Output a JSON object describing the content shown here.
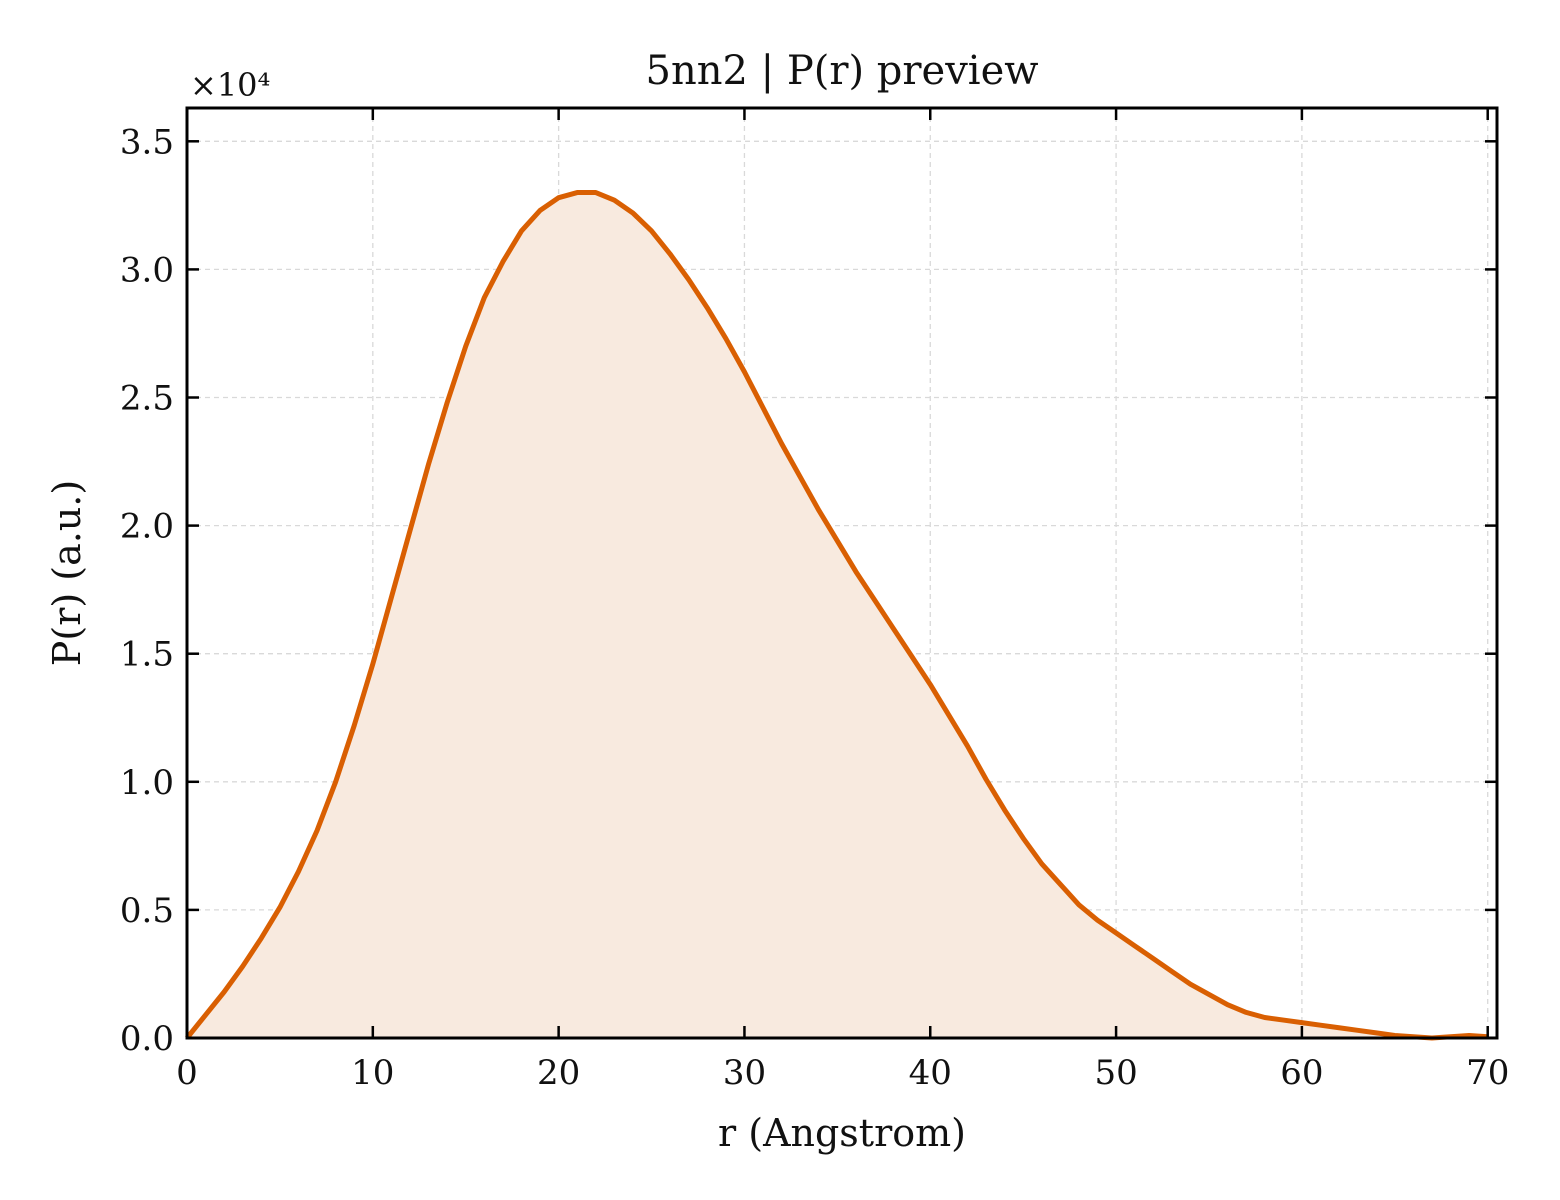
{
  "chart_data": {
    "type": "area",
    "title": "5nn2 | P(r) preview",
    "xlabel": "r (Angstrom)",
    "ylabel": "P(r) (a.u.)",
    "y_multiplier_label": "×10⁴",
    "xlim": [
      0,
      70.5
    ],
    "ylim": [
      0,
      3.63
    ],
    "xticks": [
      0,
      10,
      20,
      30,
      40,
      50,
      60,
      70
    ],
    "yticks": [
      0.0,
      0.5,
      1.0,
      1.5,
      2.0,
      2.5,
      3.0,
      3.5
    ],
    "xtick_labels": [
      "0",
      "10",
      "20",
      "30",
      "40",
      "50",
      "60",
      "70"
    ],
    "ytick_labels": [
      "0.0",
      "0.5",
      "1.0",
      "1.5",
      "2.0",
      "2.5",
      "3.0",
      "3.5"
    ],
    "grid": true,
    "line_color": "#d95f02",
    "fill_color": "#f8eadf",
    "x": [
      0,
      1,
      2,
      3,
      4,
      5,
      6,
      7,
      8,
      9,
      10,
      11,
      12,
      13,
      14,
      15,
      16,
      17,
      18,
      19,
      20,
      21,
      22,
      23,
      24,
      25,
      26,
      27,
      28,
      29,
      30,
      31,
      32,
      33,
      34,
      35,
      36,
      37,
      38,
      39,
      40,
      41,
      42,
      43,
      44,
      45,
      46,
      47,
      48,
      49,
      50,
      51,
      52,
      53,
      54,
      55,
      56,
      57,
      58,
      59,
      60,
      61,
      62,
      63,
      64,
      65,
      66,
      67,
      68,
      69,
      70
    ],
    "y": [
      0.0,
      0.09,
      0.18,
      0.28,
      0.39,
      0.51,
      0.65,
      0.81,
      1.0,
      1.22,
      1.46,
      1.72,
      1.98,
      2.24,
      2.48,
      2.7,
      2.89,
      3.03,
      3.15,
      3.23,
      3.28,
      3.3,
      3.3,
      3.27,
      3.22,
      3.15,
      3.06,
      2.96,
      2.85,
      2.73,
      2.6,
      2.46,
      2.32,
      2.19,
      2.06,
      1.94,
      1.82,
      1.71,
      1.6,
      1.49,
      1.38,
      1.26,
      1.14,
      1.01,
      0.89,
      0.78,
      0.68,
      0.6,
      0.52,
      0.46,
      0.41,
      0.36,
      0.31,
      0.26,
      0.21,
      0.17,
      0.13,
      0.1,
      0.08,
      0.07,
      0.06,
      0.05,
      0.04,
      0.03,
      0.02,
      0.01,
      0.005,
      0.0,
      0.005,
      0.01,
      0.005
    ]
  }
}
